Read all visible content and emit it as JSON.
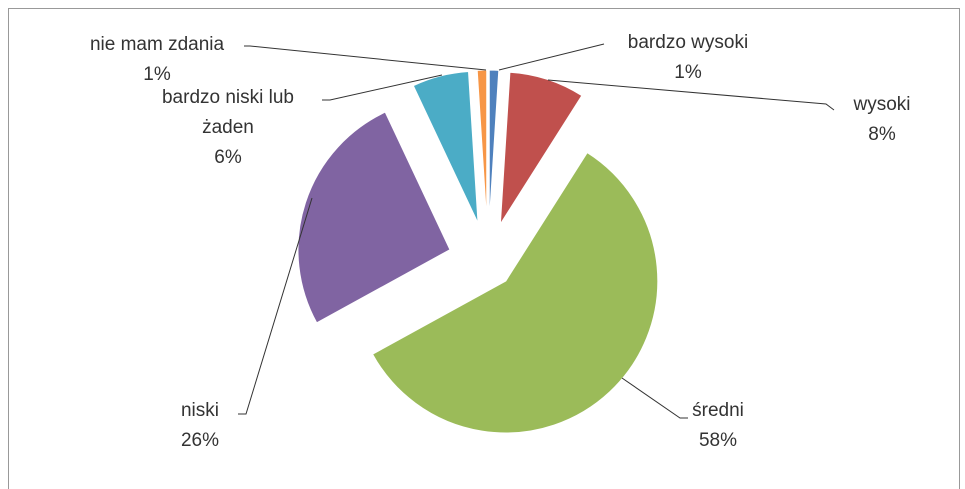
{
  "chart_data": {
    "type": "pie",
    "categories": [
      "bardzo wysoki",
      "wysoki",
      "średni",
      "niski",
      "bardzo niski lub żaden",
      "nie mam zdania"
    ],
    "values": [
      1,
      8,
      58,
      26,
      6,
      1
    ],
    "value_labels": [
      "1%",
      "8%",
      "58%",
      "26%",
      "6%",
      "1%"
    ],
    "colors": [
      "#4f81bd",
      "#c0504d",
      "#9bbb59",
      "#8064a2",
      "#4bacc6",
      "#f79646"
    ]
  }
}
